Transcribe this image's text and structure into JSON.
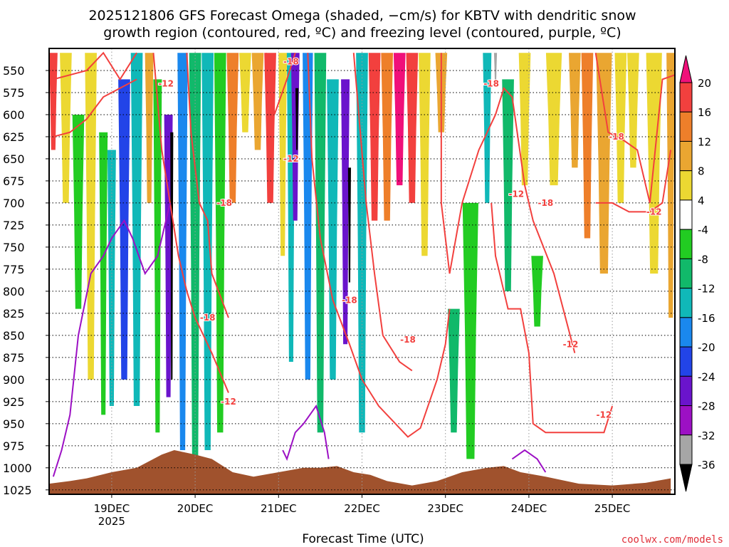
{
  "chart_data": {
    "type": "time-pressure cross section",
    "title_line1": "2025121806 GFS Forecast Omega (shaded, −cm/s) for KBTV with dendritic snow",
    "title_line2": "growth region (contoured, red, ºC) and freezing level (contoured, purple, ºC)",
    "xlabel": "Forecast Time (UTC)",
    "x_ticks": [
      {
        "label": "19DEC",
        "sub": "2025"
      },
      {
        "label": "20DEC",
        "sub": ""
      },
      {
        "label": "21DEC",
        "sub": ""
      },
      {
        "label": "22DEC",
        "sub": ""
      },
      {
        "label": "23DEC",
        "sub": ""
      },
      {
        "label": "24DEC",
        "sub": ""
      },
      {
        "label": "25DEC",
        "sub": ""
      }
    ],
    "y_ticks": [
      550,
      575,
      600,
      625,
      650,
      675,
      700,
      725,
      750,
      775,
      800,
      825,
      850,
      875,
      900,
      925,
      950,
      975,
      1000,
      1025
    ],
    "ylim": [
      525,
      1030
    ],
    "xlim_days": [
      18.25,
      25.75
    ],
    "colorbar": {
      "ticks": [
        20,
        16,
        12,
        8,
        4,
        -4,
        -8,
        -12,
        -16,
        -20,
        -24,
        -28,
        -32,
        -36
      ],
      "bins": [
        {
          "from": 20,
          "to": 24,
          "color": "#f0107a"
        },
        {
          "from": 16,
          "to": 20,
          "color": "#f2403e"
        },
        {
          "from": 12,
          "to": 16,
          "color": "#ee7f2a"
        },
        {
          "from": 8,
          "to": 12,
          "color": "#eaa631"
        },
        {
          "from": 4,
          "to": 8,
          "color": "#ecd832"
        },
        {
          "from": -4,
          "to": 4,
          "color": "#ffffff"
        },
        {
          "from": -8,
          "to": -4,
          "color": "#22cc22"
        },
        {
          "from": -12,
          "to": -8,
          "color": "#11b96a"
        },
        {
          "from": -16,
          "to": -12,
          "color": "#10b8b8"
        },
        {
          "from": -20,
          "to": -16,
          "color": "#1a88ee"
        },
        {
          "from": -24,
          "to": -20,
          "color": "#2244e8"
        },
        {
          "from": -28,
          "to": -24,
          "color": "#6a14cc"
        },
        {
          "from": -32,
          "to": -28,
          "color": "#9c10c4"
        },
        {
          "from": -36,
          "to": -32,
          "color": "#a6a6a6"
        },
        {
          "from": -40,
          "to": -36,
          "color": "#000000"
        }
      ]
    },
    "omega_columns": [
      {
        "t": 18.3,
        "top": 530,
        "bot": 640,
        "v": 18
      },
      {
        "t": 18.45,
        "top": 530,
        "bot": 700,
        "v": 6
      },
      {
        "t": 18.6,
        "top": 600,
        "bot": 820,
        "v": -6
      },
      {
        "t": 18.75,
        "top": 530,
        "bot": 900,
        "v": 6
      },
      {
        "t": 18.9,
        "top": 620,
        "bot": 940,
        "v": -6
      },
      {
        "t": 19.0,
        "top": 640,
        "bot": 930,
        "v": -14
      },
      {
        "t": 19.15,
        "top": 560,
        "bot": 900,
        "v": -22
      },
      {
        "t": 19.3,
        "top": 530,
        "bot": 930,
        "v": -14
      },
      {
        "t": 19.45,
        "top": 530,
        "bot": 700,
        "v": 10
      },
      {
        "t": 19.55,
        "top": 560,
        "bot": 960,
        "v": -6
      },
      {
        "t": 19.68,
        "top": 600,
        "bot": 920,
        "v": -26
      },
      {
        "t": 19.72,
        "top": 620,
        "bot": 900,
        "v": -38
      },
      {
        "t": 19.85,
        "top": 530,
        "bot": 980,
        "v": -18
      },
      {
        "t": 20.0,
        "top": 530,
        "bot": 1000,
        "v": -10
      },
      {
        "t": 20.15,
        "top": 530,
        "bot": 980,
        "v": -14
      },
      {
        "t": 20.3,
        "top": 530,
        "bot": 960,
        "v": -6
      },
      {
        "t": 20.45,
        "top": 530,
        "bot": 700,
        "v": 14
      },
      {
        "t": 20.6,
        "top": 530,
        "bot": 620,
        "v": 6
      },
      {
        "t": 20.75,
        "top": 530,
        "bot": 640,
        "v": 10
      },
      {
        "t": 20.9,
        "top": 530,
        "bot": 700,
        "v": 18
      },
      {
        "t": 21.05,
        "top": 530,
        "bot": 760,
        "v": 6
      },
      {
        "t": 21.15,
        "top": 530,
        "bot": 880,
        "v": -14
      },
      {
        "t": 21.2,
        "top": 530,
        "bot": 720,
        "v": -26
      },
      {
        "t": 21.22,
        "top": 570,
        "bot": 640,
        "v": -38
      },
      {
        "t": 21.35,
        "top": 530,
        "bot": 900,
        "v": -18
      },
      {
        "t": 21.5,
        "top": 530,
        "bot": 960,
        "v": -10
      },
      {
        "t": 21.65,
        "top": 560,
        "bot": 900,
        "v": -14
      },
      {
        "t": 21.8,
        "top": 560,
        "bot": 860,
        "v": -26
      },
      {
        "t": 21.85,
        "top": 660,
        "bot": 790,
        "v": -38
      },
      {
        "t": 22.0,
        "top": 530,
        "bot": 960,
        "v": -14
      },
      {
        "t": 22.15,
        "top": 530,
        "bot": 720,
        "v": 18
      },
      {
        "t": 22.3,
        "top": 530,
        "bot": 720,
        "v": 14
      },
      {
        "t": 22.45,
        "top": 530,
        "bot": 680,
        "v": 22
      },
      {
        "t": 22.6,
        "top": 530,
        "bot": 700,
        "v": 18
      },
      {
        "t": 22.75,
        "top": 530,
        "bot": 760,
        "v": 6
      },
      {
        "t": 22.95,
        "top": 530,
        "bot": 620,
        "v": 10
      },
      {
        "t": 23.1,
        "top": 820,
        "bot": 960,
        "v": -10
      },
      {
        "t": 23.3,
        "top": 700,
        "bot": 990,
        "v": -6
      },
      {
        "t": 23.5,
        "top": 530,
        "bot": 700,
        "v": -14
      },
      {
        "t": 23.6,
        "top": 530,
        "bot": 560,
        "v": -34
      },
      {
        "t": 23.75,
        "top": 560,
        "bot": 800,
        "v": -10
      },
      {
        "t": 23.95,
        "top": 530,
        "bot": 680,
        "v": 6
      },
      {
        "t": 24.1,
        "top": 760,
        "bot": 840,
        "v": -6
      },
      {
        "t": 24.3,
        "top": 530,
        "bot": 680,
        "v": 6
      },
      {
        "t": 24.55,
        "top": 530,
        "bot": 660,
        "v": 10
      },
      {
        "t": 24.7,
        "top": 530,
        "bot": 740,
        "v": 14
      },
      {
        "t": 24.9,
        "top": 530,
        "bot": 780,
        "v": 8
      },
      {
        "t": 25.1,
        "top": 530,
        "bot": 700,
        "v": 6
      },
      {
        "t": 25.25,
        "top": 530,
        "bot": 660,
        "v": 6
      },
      {
        "t": 25.5,
        "top": 530,
        "bot": 780,
        "v": 6
      },
      {
        "t": 25.7,
        "top": 530,
        "bot": 830,
        "v": 10
      }
    ],
    "contours_dgz": [
      {
        "level": -12,
        "points": [
          [
            18.3,
            560
          ],
          [
            18.5,
            555
          ],
          [
            18.7,
            550
          ],
          [
            18.9,
            530
          ],
          [
            19.1,
            560
          ],
          [
            19.3,
            530
          ]
        ]
      },
      {
        "level": -18,
        "points": [
          [
            18.3,
            625
          ],
          [
            18.5,
            620
          ],
          [
            18.7,
            605
          ],
          [
            18.9,
            580
          ],
          [
            19.1,
            570
          ],
          [
            19.3,
            560
          ]
        ]
      },
      {
        "level": -12,
        "points": [
          [
            19.5,
            530
          ],
          [
            19.6,
            640
          ],
          [
            19.7,
            700
          ],
          [
            19.8,
            760
          ],
          [
            19.9,
            800
          ],
          [
            20.0,
            830
          ],
          [
            20.2,
            870
          ],
          [
            20.4,
            915
          ]
        ]
      },
      {
        "level": -18,
        "points": [
          [
            19.9,
            530
          ],
          [
            19.95,
            620
          ],
          [
            20.05,
            700
          ],
          [
            20.15,
            720
          ],
          [
            20.2,
            780
          ],
          [
            20.4,
            830
          ]
        ]
      },
      {
        "level": -12,
        "points": [
          [
            20.85,
            530
          ],
          [
            20.95,
            600
          ],
          [
            21.1,
            560
          ],
          [
            21.2,
            530
          ]
        ]
      },
      {
        "level": -18,
        "points": [
          [
            21.35,
            530
          ],
          [
            21.4,
            650
          ],
          [
            21.5,
            740
          ],
          [
            21.65,
            810
          ],
          [
            21.85,
            860
          ],
          [
            22.0,
            900
          ],
          [
            22.2,
            930
          ],
          [
            22.4,
            950
          ],
          [
            22.55,
            965
          ],
          [
            22.7,
            955
          ],
          [
            22.9,
            900
          ],
          [
            23.0,
            860
          ],
          [
            23.05,
            820
          ]
        ]
      },
      {
        "level": -12,
        "points": [
          [
            21.9,
            530
          ],
          [
            22.05,
            700
          ],
          [
            22.15,
            780
          ],
          [
            22.25,
            850
          ],
          [
            22.45,
            880
          ],
          [
            22.6,
            890
          ]
        ]
      },
      {
        "level": -18,
        "points": [
          [
            22.95,
            530
          ],
          [
            22.95,
            700
          ],
          [
            23.05,
            780
          ],
          [
            23.2,
            700
          ],
          [
            23.4,
            640
          ],
          [
            23.6,
            600
          ],
          [
            23.7,
            570
          ],
          [
            23.8,
            580
          ],
          [
            23.95,
            680
          ],
          [
            24.05,
            720
          ],
          [
            24.3,
            780
          ],
          [
            24.55,
            870
          ]
        ]
      },
      {
        "level": -12,
        "points": [
          [
            23.55,
            700
          ],
          [
            23.6,
            760
          ],
          [
            23.75,
            820
          ],
          [
            23.9,
            820
          ],
          [
            24.0,
            870
          ],
          [
            24.05,
            950
          ],
          [
            24.2,
            960
          ],
          [
            24.5,
            960
          ],
          [
            24.9,
            960
          ],
          [
            25.0,
            930
          ]
        ]
      },
      {
        "level": -18,
        "points": [
          [
            24.8,
            530
          ],
          [
            24.95,
            620
          ],
          [
            25.15,
            630
          ],
          [
            25.3,
            640
          ],
          [
            25.45,
            700
          ],
          [
            25.6,
            560
          ],
          [
            25.75,
            555
          ]
        ]
      },
      {
        "level": -12,
        "points": [
          [
            24.8,
            700
          ],
          [
            25.0,
            700
          ],
          [
            25.2,
            710
          ],
          [
            25.45,
            710
          ],
          [
            25.6,
            700
          ],
          [
            25.7,
            640
          ]
        ]
      }
    ],
    "contours_freezing": [
      {
        "level": 0,
        "points": [
          [
            18.3,
            1010
          ],
          [
            18.4,
            980
          ],
          [
            18.5,
            940
          ],
          [
            18.6,
            850
          ],
          [
            18.75,
            780
          ],
          [
            18.9,
            760
          ],
          [
            19.0,
            740
          ],
          [
            19.15,
            720
          ],
          [
            19.25,
            740
          ],
          [
            19.4,
            780
          ],
          [
            19.55,
            760
          ],
          [
            19.7,
            700
          ]
        ]
      },
      {
        "level": 0,
        "points": [
          [
            21.05,
            980
          ],
          [
            21.1,
            990
          ],
          [
            21.2,
            960
          ],
          [
            21.3,
            950
          ],
          [
            21.45,
            930
          ],
          [
            21.55,
            960
          ],
          [
            21.6,
            990
          ]
        ]
      },
      {
        "level": 0,
        "points": [
          [
            23.8,
            990
          ],
          [
            23.95,
            980
          ],
          [
            24.1,
            990
          ],
          [
            24.2,
            1005
          ]
        ]
      }
    ],
    "contour_labels": [
      {
        "text": "-12",
        "t": 19.65,
        "p": 565,
        "color": "#f2403e"
      },
      {
        "text": "-18",
        "t": 20.35,
        "p": 700,
        "color": "#f2403e"
      },
      {
        "text": "-18",
        "t": 20.15,
        "p": 830,
        "color": "#f2403e"
      },
      {
        "text": "-12",
        "t": 20.4,
        "p": 925,
        "color": "#f2403e"
      },
      {
        "text": "-18",
        "t": 21.15,
        "p": 540,
        "color": "#f2403e"
      },
      {
        "text": "-12",
        "t": 21.15,
        "p": 650,
        "color": "#f2403e"
      },
      {
        "text": "-18",
        "t": 21.85,
        "p": 810,
        "color": "#f2403e"
      },
      {
        "text": "-18",
        "t": 22.55,
        "p": 855,
        "color": "#f2403e"
      },
      {
        "text": "-18",
        "t": 23.55,
        "p": 565,
        "color": "#f2403e"
      },
      {
        "text": "-12",
        "t": 23.85,
        "p": 690,
        "color": "#f2403e"
      },
      {
        "text": "-18",
        "t": 24.2,
        "p": 700,
        "color": "#f2403e"
      },
      {
        "text": "-12",
        "t": 24.5,
        "p": 860,
        "color": "#f2403e"
      },
      {
        "text": "-18",
        "t": 25.05,
        "p": 625,
        "color": "#f2403e"
      },
      {
        "text": "-12",
        "t": 25.5,
        "p": 710,
        "color": "#f2403e"
      },
      {
        "text": "-12",
        "t": 24.9,
        "p": 940,
        "color": "#f2403e"
      }
    ],
    "terrain_color": "#a0522d",
    "terrain": [
      [
        18.25,
        1018
      ],
      [
        18.5,
        1015
      ],
      [
        18.7,
        1012
      ],
      [
        19.0,
        1005
      ],
      [
        19.3,
        1000
      ],
      [
        19.6,
        985
      ],
      [
        19.75,
        980
      ],
      [
        20.0,
        985
      ],
      [
        20.2,
        990
      ],
      [
        20.45,
        1005
      ],
      [
        20.7,
        1010
      ],
      [
        21.0,
        1005
      ],
      [
        21.3,
        1000
      ],
      [
        21.5,
        1000
      ],
      [
        21.7,
        998
      ],
      [
        21.9,
        1005
      ],
      [
        22.1,
        1008
      ],
      [
        22.3,
        1015
      ],
      [
        22.6,
        1020
      ],
      [
        22.9,
        1015
      ],
      [
        23.2,
        1005
      ],
      [
        23.5,
        1000
      ],
      [
        23.7,
        998
      ],
      [
        23.9,
        1005
      ],
      [
        24.2,
        1010
      ],
      [
        24.6,
        1018
      ],
      [
        25.0,
        1020
      ],
      [
        25.4,
        1017
      ],
      [
        25.7,
        1012
      ]
    ],
    "credit": "coolwx.com/models"
  }
}
